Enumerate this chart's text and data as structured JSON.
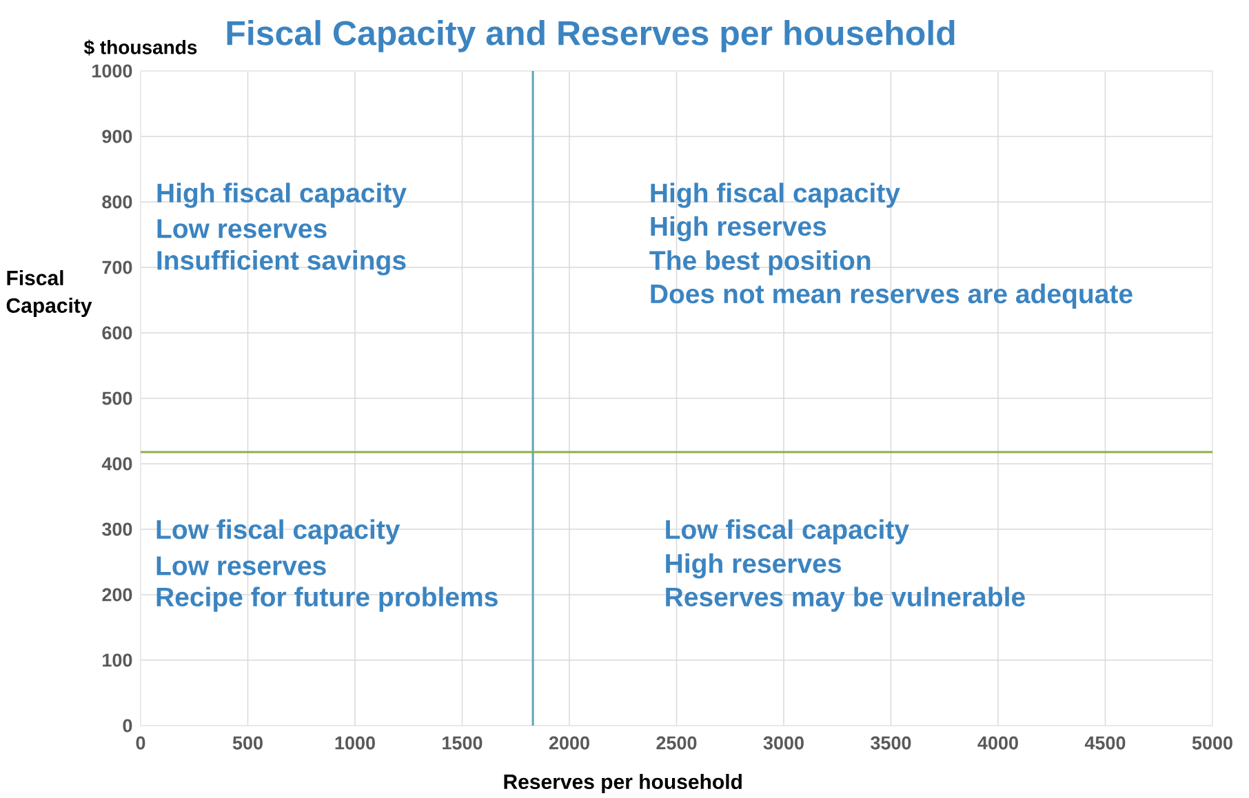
{
  "chart_data": {
    "type": "scatter",
    "title": "Fiscal Capacity and Reserves per household",
    "xlabel": "Reserves per household",
    "ylabel": "Fiscal Capacity",
    "annotations": [
      "$ thousands",
      "High fiscal capacity",
      "Low reserves",
      "Insufficient savings",
      "High fiscal capacity",
      "High reserves",
      "The best position",
      "Does not mean reserves are adequate",
      "Low fiscal capacity",
      "Low reserves",
      "Recipe for future problems",
      "Low fiscal capacity",
      "High reserves",
      "Reserves may be vulnerable"
    ],
    "xlim": [
      0,
      5000
    ],
    "ylim": [
      0,
      1000
    ],
    "xticks": [
      0,
      500,
      1000,
      1500,
      2000,
      2500,
      3000,
      3500,
      4000,
      4500,
      5000
    ],
    "yticks": [
      0,
      100,
      200,
      300,
      400,
      500,
      600,
      700,
      800,
      900,
      1000
    ],
    "grid": true,
    "ref_lines": [
      {
        "axis": "x",
        "value": 1830,
        "color": "#5aa7b7"
      },
      {
        "axis": "y",
        "value": 418,
        "color": "#8fae4a"
      }
    ]
  }
}
